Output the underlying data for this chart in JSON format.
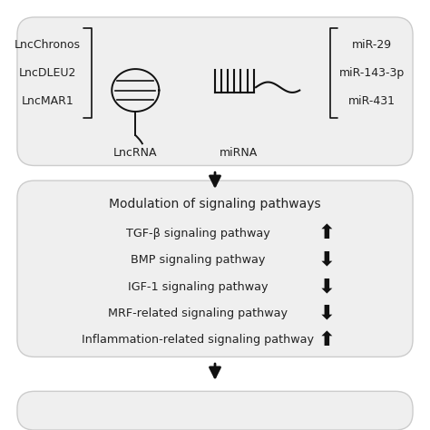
{
  "bg_color": "#ffffff",
  "box_color": "#efefef",
  "box_edge_color": "#cccccc",
  "lncrna_items": [
    "LncChronos",
    "LncDLEU2",
    "LncMAR1"
  ],
  "mirna_items": [
    "miR-29",
    "miR-143-3p",
    "miR-431"
  ],
  "lncrna_label": "LncRNA",
  "mirna_label": "miRNA",
  "modulation_title": "Modulation of signaling pathways",
  "pathways": [
    {
      "name": "TGF-β signaling pathway",
      "direction": "up"
    },
    {
      "name": "BMP signaling pathway",
      "direction": "down"
    },
    {
      "name": "IGF-1 signaling pathway",
      "direction": "down"
    },
    {
      "name": "MRF-related signaling pathway",
      "direction": "down"
    },
    {
      "name": "Inflammation-related signaling pathway",
      "direction": "up"
    }
  ],
  "dark_color": "#111111",
  "text_color": "#222222",
  "figsize": [
    4.74,
    4.74
  ],
  "dpi": 100
}
